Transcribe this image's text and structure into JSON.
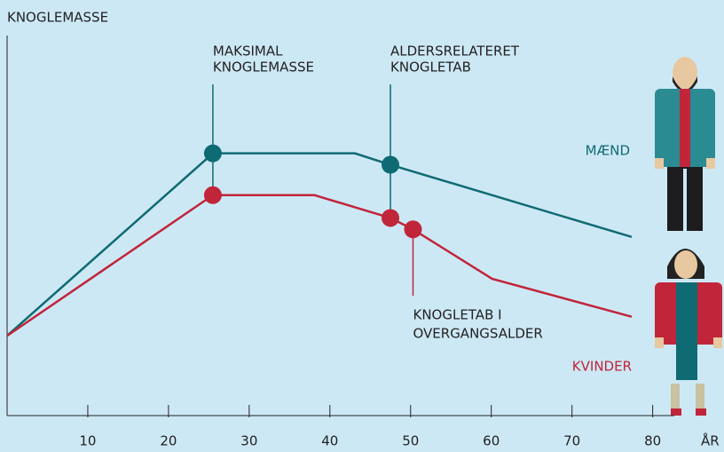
{
  "chart_data": {
    "type": "line",
    "y_label": "KNOGLEMASSE",
    "x_label": "ÅR",
    "xlim": [
      0,
      84
    ],
    "xticks": [
      10,
      20,
      30,
      40,
      50,
      60,
      70,
      80
    ],
    "ylim": [
      0,
      100
    ],
    "series": [
      {
        "name": "MÆND",
        "color": "#0f6b73",
        "x": [
          0,
          25.5,
          43.1,
          47.5,
          77.4
        ],
        "values": [
          21,
          69,
          69,
          66,
          47
        ],
        "markers": [
          1,
          3
        ]
      },
      {
        "name": "KVINDER",
        "color": "#c1253a",
        "x": [
          0,
          25.5,
          38.1,
          47.5,
          50.3,
          60.1,
          77.4
        ],
        "values": [
          21,
          58,
          58,
          52,
          49,
          36,
          26
        ],
        "markers": [
          1,
          3,
          4
        ]
      }
    ],
    "annotations": [
      {
        "lines": [
          "MAKSIMAL",
          "KNOGLEMASSE"
        ],
        "x": 25.5
      },
      {
        "lines": [
          "ALDERSRELATERET",
          "KNOGLETAB"
        ],
        "x": 47.5
      },
      {
        "lines": [
          "KNOGLETAB I",
          "OVERGANGSALDER"
        ],
        "x": 50.3
      }
    ]
  }
}
